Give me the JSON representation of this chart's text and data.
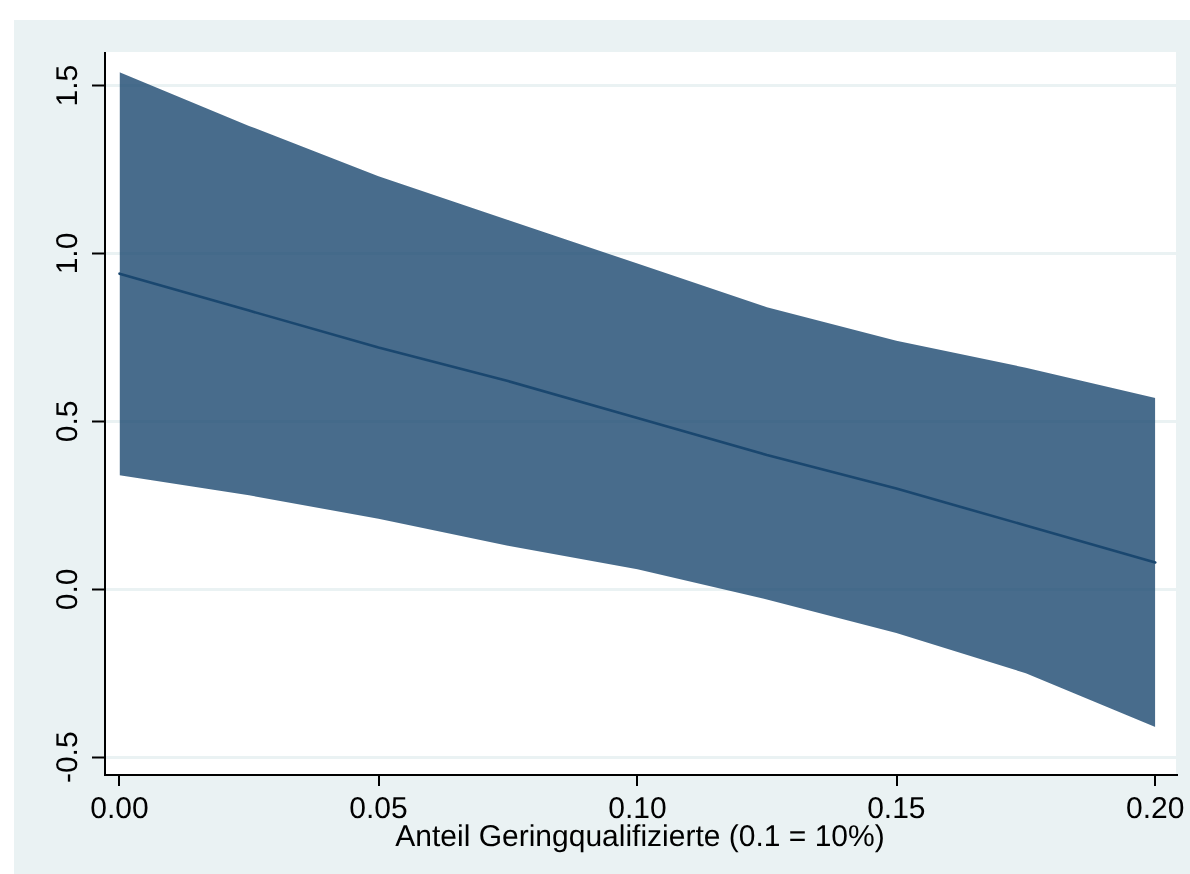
{
  "chart_data": {
    "type": "line",
    "xlabel": "Anteil Geringqualifizierte (0.1 = 10%)",
    "x": [
      0,
      0.025,
      0.05,
      0.075,
      0.1,
      0.125,
      0.15,
      0.175,
      0.2
    ],
    "series": [
      {
        "color": "#1a476f",
        "values": [
          0.94,
          0.83,
          0.72,
          0.62,
          0.51,
          0.4,
          0.3,
          0.19,
          0.08
        ],
        "lower": [
          0.34,
          0.28,
          0.21,
          0.13,
          0.06,
          -0.03,
          -0.13,
          -0.25,
          -0.41
        ],
        "upper": [
          1.54,
          1.38,
          1.23,
          1.1,
          0.97,
          0.84,
          0.74,
          0.66,
          0.57
        ]
      }
    ],
    "xlim": [
      -0.003,
      0.204
    ],
    "xticks": [
      {
        "value": 0,
        "label": "0.00"
      },
      {
        "value": 0.05,
        "label": "0.05"
      },
      {
        "value": 0.1,
        "label": "0.10"
      },
      {
        "value": 0.15,
        "label": "0.15"
      },
      {
        "value": 0.2,
        "label": "0.20"
      }
    ],
    "ylim": [
      -0.55,
      1.6
    ],
    "yticks": [
      -0.5,
      {
        "value": 0,
        "label": "0.0"
      },
      0.5,
      {
        "value": 1,
        "label": "1.0"
      },
      1.5
    ],
    "grid": "y",
    "marker": "none"
  }
}
